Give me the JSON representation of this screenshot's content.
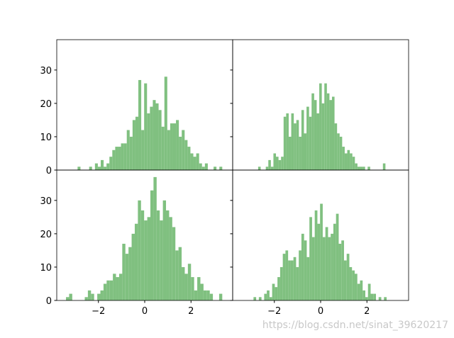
{
  "chart_data": [
    {
      "type": "histogram",
      "color": "#80c080",
      "ylim": [
        0,
        39.1
      ],
      "xlim": [
        -3.8,
        3.8
      ],
      "yticks": [
        0,
        10,
        20,
        30
      ],
      "bins": [
        -2.9,
        -2.775,
        -2.65,
        -2.525,
        -2.4,
        -2.275,
        -2.15,
        -2.025,
        -1.9,
        -1.775,
        -1.65,
        -1.525,
        -1.4,
        -1.275,
        -1.15,
        -1.025,
        -0.9,
        -0.775,
        -0.65,
        -0.525,
        -0.4,
        -0.275,
        -0.15,
        -0.025,
        0.1,
        0.225,
        0.35,
        0.475,
        0.6,
        0.725,
        0.85,
        0.975,
        1.1,
        1.225,
        1.35,
        1.475,
        1.6,
        1.725,
        1.85,
        1.975,
        2.1,
        2.225,
        2.35,
        2.475,
        2.6,
        2.725,
        2.85,
        2.975,
        3.1,
        3.225,
        3.35
      ],
      "values": [
        1,
        0,
        0,
        0,
        1,
        0,
        2,
        1,
        3,
        1,
        2,
        4,
        6,
        7,
        7,
        8,
        8,
        12,
        10,
        15,
        16,
        27,
        12,
        26,
        17,
        19,
        21,
        20,
        18,
        13,
        28,
        12,
        14,
        14,
        15,
        10,
        12,
        9,
        7,
        5,
        4,
        5,
        2,
        1,
        2,
        0,
        0,
        1,
        0,
        1
      ]
    },
    {
      "type": "histogram",
      "color": "#80c080",
      "ylim": [
        0,
        39.1
      ],
      "xlim": [
        -3.8,
        3.8
      ],
      "yticks": [
        0,
        10,
        20,
        30
      ],
      "bins": [
        -2.7,
        -2.59,
        -2.48,
        -2.37,
        -2.26,
        -2.15,
        -2.04,
        -1.93,
        -1.82,
        -1.71,
        -1.6,
        -1.49,
        -1.38,
        -1.27,
        -1.16,
        -1.05,
        -0.94,
        -0.83,
        -0.72,
        -0.61,
        -0.5,
        -0.39,
        -0.28,
        -0.17,
        -0.06,
        0.05,
        0.16,
        0.27,
        0.38,
        0.49,
        0.6,
        0.71,
        0.82,
        0.93,
        1.04,
        1.15,
        1.26,
        1.37,
        1.48,
        1.59,
        1.7,
        1.81,
        1.92,
        2.03,
        2.14,
        2.25,
        2.36,
        2.47,
        2.58,
        2.69,
        2.8
      ],
      "values": [
        1,
        0,
        0,
        1,
        3,
        1,
        5,
        4,
        3,
        4,
        16,
        17,
        10,
        17,
        14,
        15,
        10,
        18,
        11,
        19,
        16,
        23,
        21,
        17,
        26,
        20,
        26,
        23,
        21,
        22,
        14,
        11,
        10,
        7,
        5,
        6,
        5,
        4,
        2,
        1,
        1,
        1,
        0,
        1,
        0,
        0,
        0,
        0,
        0,
        2
      ]
    },
    {
      "type": "histogram",
      "color": "#80c080",
      "ylim": [
        0,
        39.1
      ],
      "xlim": [
        -3.8,
        3.8
      ],
      "yticks": [
        0,
        10,
        20,
        30
      ],
      "xticks": [
        {
          "value": -2,
          "label": "−2"
        },
        0,
        2
      ],
      "bins": [
        -3.4,
        -3.265,
        -3.13,
        -2.995,
        -2.86,
        -2.725,
        -2.59,
        -2.455,
        -2.32,
        -2.185,
        -2.05,
        -1.915,
        -1.78,
        -1.645,
        -1.51,
        -1.375,
        -1.24,
        -1.105,
        -0.97,
        -0.835,
        -0.7,
        -0.565,
        -0.43,
        -0.295,
        -0.16,
        -0.025,
        0.11,
        0.245,
        0.38,
        0.515,
        0.65,
        0.785,
        0.92,
        1.055,
        1.19,
        1.325,
        1.46,
        1.595,
        1.73,
        1.865,
        2.0,
        2.135,
        2.27,
        2.405,
        2.54,
        2.675,
        2.81,
        2.945,
        3.08,
        3.215,
        3.35
      ],
      "values": [
        1,
        2,
        0,
        0,
        0,
        0,
        1,
        3,
        2,
        0,
        2,
        3,
        5,
        6,
        6,
        8,
        7,
        8,
        17,
        14,
        16,
        20,
        23,
        30,
        27,
        24,
        25,
        33,
        37,
        27,
        24,
        30,
        27,
        25,
        22,
        15,
        16,
        10,
        8,
        11,
        7,
        3,
        7,
        5,
        3,
        3,
        2,
        0,
        0,
        2
      ]
    },
    {
      "type": "histogram",
      "color": "#80c080",
      "ylim": [
        0,
        39.1
      ],
      "xlim": [
        -3.8,
        3.8
      ],
      "yticks": [
        0,
        10,
        20,
        30
      ],
      "xticks": [
        {
          "value": -2,
          "label": "−2"
        },
        0,
        2
      ],
      "bins": [
        -2.9,
        -2.785,
        -2.67,
        -2.555,
        -2.44,
        -2.325,
        -2.21,
        -2.095,
        -1.98,
        -1.865,
        -1.75,
        -1.635,
        -1.52,
        -1.405,
        -1.29,
        -1.175,
        -1.06,
        -0.945,
        -0.83,
        -0.715,
        -0.6,
        -0.485,
        -0.37,
        -0.255,
        -0.14,
        -0.025,
        0.09,
        0.205,
        0.32,
        0.435,
        0.55,
        0.665,
        0.78,
        0.895,
        1.01,
        1.125,
        1.24,
        1.355,
        1.47,
        1.585,
        1.7,
        1.815,
        1.93,
        2.045,
        2.16,
        2.275,
        2.39,
        2.505,
        2.62,
        2.735,
        2.85
      ],
      "values": [
        1,
        0,
        1,
        0,
        2,
        3,
        1,
        5,
        4,
        7,
        10,
        14,
        15,
        12,
        12,
        13,
        10,
        15,
        20,
        18,
        13,
        25,
        19,
        27,
        23,
        29,
        19,
        22,
        19,
        20,
        23,
        26,
        17,
        18,
        12,
        14,
        10,
        9,
        8,
        5,
        6,
        3,
        1,
        5,
        2,
        2,
        0,
        1,
        0,
        1
      ]
    }
  ],
  "watermark": "https://blog.csdn.net/sinat_39620217"
}
